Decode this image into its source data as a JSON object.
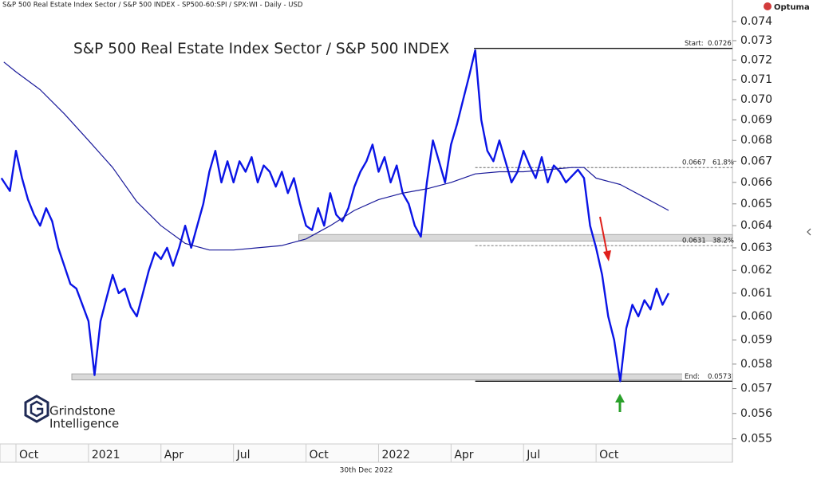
{
  "chart_data": {
    "type": "line",
    "header": "S&P 500 Real Estate Index Sector / S&P 500 INDEX - SP500-60:SPI / SPX:WI - Daily - USD",
    "title": "S&P 500 Real Estate Index Sector / S&P 500 INDEX",
    "date": "30th Dec 2022",
    "brand": "Optuma",
    "logo": [
      "Grindstone",
      "Intelligence"
    ],
    "log_scale": true,
    "xlim": [
      -0.66,
      29.64
    ],
    "xticks": [
      {
        "value": 0,
        "label": "Oct"
      },
      {
        "value": 3,
        "label": "2021"
      },
      {
        "value": 6,
        "label": "Apr"
      },
      {
        "value": 9,
        "label": "Jul"
      },
      {
        "value": 12,
        "label": "Oct"
      },
      {
        "value": 15,
        "label": "2022"
      },
      {
        "value": 18,
        "label": "Apr"
      },
      {
        "value": 21,
        "label": "Jul"
      },
      {
        "value": 24,
        "label": "Oct"
      }
    ],
    "ylim": [
      0.0548,
      0.0748
    ],
    "yticks": [
      0.055,
      0.056,
      0.057,
      0.058,
      0.059,
      {
        "value": 0.06,
        "label": "0.060"
      },
      0.061,
      0.062,
      0.063,
      0.064,
      0.065,
      0.066,
      0.067,
      0.068,
      0.069,
      {
        "value": 0.07,
        "label": "0.070"
      },
      0.071,
      0.072,
      0.073,
      0.074
    ],
    "series": [
      {
        "color": "#0a14e6",
        "width": 2.4,
        "x": [
          -0.6,
          -0.25,
          0,
          0.25,
          0.5,
          0.75,
          1,
          1.25,
          1.5,
          1.75,
          2,
          2.25,
          2.5,
          2.75,
          3,
          3.25,
          3.5,
          3.75,
          4,
          4.25,
          4.5,
          4.75,
          5,
          5.25,
          5.5,
          5.75,
          6,
          6.25,
          6.5,
          6.75,
          7,
          7.25,
          7.5,
          7.75,
          8,
          8.25,
          8.5,
          8.75,
          9,
          9.25,
          9.5,
          9.75,
          10,
          10.25,
          10.5,
          10.75,
          11,
          11.25,
          11.5,
          11.75,
          12,
          12.25,
          12.5,
          12.75,
          13,
          13.25,
          13.5,
          13.75,
          14,
          14.25,
          14.5,
          14.75,
          15,
          15.25,
          15.5,
          15.75,
          16,
          16.25,
          16.5,
          16.75,
          17,
          17.25,
          17.5,
          17.75,
          18,
          18.25,
          18.5,
          18.75,
          19,
          19.25,
          19.5,
          19.75,
          20,
          20.25,
          20.5,
          20.75,
          21,
          21.25,
          21.5,
          21.75,
          22,
          22.25,
          22.5,
          22.75,
          23,
          23.25,
          23.5,
          23.75,
          24,
          24.25,
          24.5,
          24.75,
          25,
          25.25,
          25.5,
          25.75,
          26,
          26.25,
          26.5,
          26.75,
          27
        ],
        "values": [
          0.0662,
          0.0656,
          0.0675,
          0.0662,
          0.0652,
          0.0645,
          0.064,
          0.0648,
          0.0642,
          0.063,
          0.0622,
          0.0614,
          0.0612,
          0.0605,
          0.0598,
          0.05755,
          0.0598,
          0.0608,
          0.0618,
          0.061,
          0.0612,
          0.0604,
          0.06,
          0.061,
          0.062,
          0.0628,
          0.0625,
          0.063,
          0.0622,
          0.063,
          0.064,
          0.063,
          0.064,
          0.065,
          0.0665,
          0.0675,
          0.066,
          0.067,
          0.066,
          0.067,
          0.0665,
          0.0672,
          0.066,
          0.0668,
          0.0665,
          0.0658,
          0.0665,
          0.0655,
          0.0662,
          0.065,
          0.064,
          0.0638,
          0.0648,
          0.064,
          0.0655,
          0.0645,
          0.0642,
          0.0648,
          0.0658,
          0.0665,
          0.067,
          0.0678,
          0.0665,
          0.0672,
          0.066,
          0.0668,
          0.0655,
          0.065,
          0.064,
          0.0635,
          0.066,
          0.068,
          0.067,
          0.066,
          0.0678,
          0.0688,
          0.07,
          0.0712,
          0.0725,
          0.069,
          0.0675,
          0.067,
          0.068,
          0.067,
          0.066,
          0.0665,
          0.0675,
          0.0668,
          0.0662,
          0.0672,
          0.066,
          0.0668,
          0.0665,
          0.066,
          0.0663,
          0.0666,
          0.0662,
          0.064,
          0.063,
          0.0618,
          0.06,
          0.059,
          0.0573,
          0.0595,
          0.0605,
          0.06,
          0.0607,
          0.0603,
          0.0612,
          0.0605,
          0.061
        ]
      },
      {
        "color": "#1a1a9a",
        "width": 1.2,
        "x": [
          -0.5,
          0,
          1,
          2,
          3,
          4,
          5,
          6,
          7,
          8,
          9,
          10,
          11,
          12,
          13,
          14,
          15,
          16,
          17,
          18,
          19,
          20,
          21,
          22,
          23,
          23.5,
          24,
          25,
          26,
          27
        ],
        "values": [
          0.0719,
          0.0714,
          0.0705,
          0.0693,
          0.068,
          0.0667,
          0.0651,
          0.064,
          0.0632,
          0.0629,
          0.0629,
          0.063,
          0.0631,
          0.0634,
          0.064,
          0.0647,
          0.0652,
          0.0655,
          0.0657,
          0.066,
          0.0664,
          0.0665,
          0.0665,
          0.0666,
          0.0667,
          0.0667,
          0.0662,
          0.0659,
          0.0653,
          0.0647
        ]
      }
    ],
    "bands": [
      {
        "from": 0.0633,
        "to": 0.0636,
        "x": 11.7
      },
      {
        "from": 0.05735,
        "to": 0.0576,
        "x": 2.31
      }
    ],
    "levels": [
      {
        "label": "Start:",
        "value": 0.0726,
        "x": 18.95,
        "style": "solid"
      },
      {
        "label": "61.8%",
        "value": 0.0667,
        "x": 19.0,
        "style": "dashed"
      },
      {
        "label": "38.2%",
        "value": 0.0631,
        "x": 19.0,
        "style": "dashed"
      },
      {
        "label": "End:",
        "value": 0.0573,
        "x": 19.0,
        "style": "solid"
      }
    ]
  }
}
